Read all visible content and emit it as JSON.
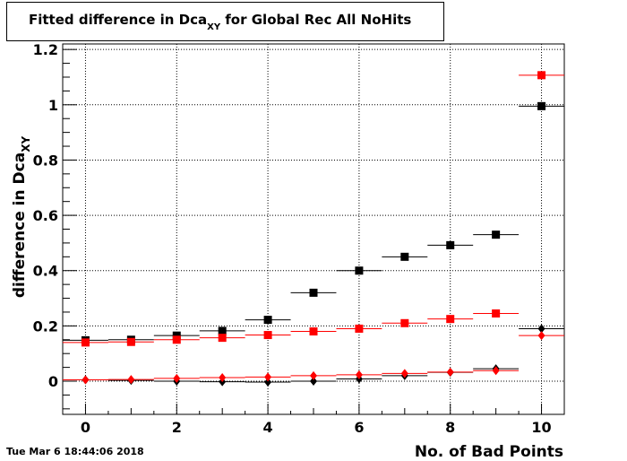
{
  "title": {
    "main": "Fitted difference in Dca",
    "sub": "XY",
    "rest": " for Global Rec All NoHits"
  },
  "timestamp": "Tue Mar  6 18:44:06 2018",
  "chart_data": {
    "type": "scatter",
    "xlabel": "No. of Bad Points",
    "ylabel": "difference in Dca",
    "ylabel_sub": "XY",
    "xlim": [
      -0.5,
      10.5
    ],
    "ylim": [
      -0.12,
      1.22
    ],
    "xticks": [
      0,
      2,
      4,
      6,
      8,
      10
    ],
    "yticks": [
      0,
      0.2,
      0.4,
      0.6,
      0.8,
      1,
      1.2
    ],
    "ytick_labels": [
      "0",
      "0.2",
      "0.4",
      "0.6",
      "0.8",
      "1",
      "1.2"
    ],
    "grid": true,
    "x": [
      0,
      1,
      2,
      3,
      4,
      5,
      6,
      7,
      8,
      9,
      10
    ],
    "x_halfwidth": 0.5,
    "series": [
      {
        "marker": "square",
        "color": "#000000",
        "values": [
          0.148,
          0.15,
          0.165,
          0.182,
          0.222,
          0.32,
          0.4,
          0.45,
          0.492,
          0.53,
          0.995
        ]
      },
      {
        "marker": "square",
        "color": "#ff0000",
        "values": [
          0.14,
          0.142,
          0.15,
          0.157,
          0.167,
          0.18,
          0.19,
          0.21,
          0.225,
          0.245,
          1.107
        ]
      },
      {
        "marker": "diamond",
        "color": "#000000",
        "values": [
          0.005,
          0.003,
          0.0,
          -0.002,
          -0.003,
          0.0,
          0.008,
          0.02,
          0.032,
          0.045,
          0.19
        ]
      },
      {
        "marker": "diamond",
        "color": "#ff0000",
        "values": [
          0.005,
          0.006,
          0.01,
          0.013,
          0.015,
          0.02,
          0.023,
          0.028,
          0.033,
          0.038,
          0.165
        ]
      }
    ]
  }
}
